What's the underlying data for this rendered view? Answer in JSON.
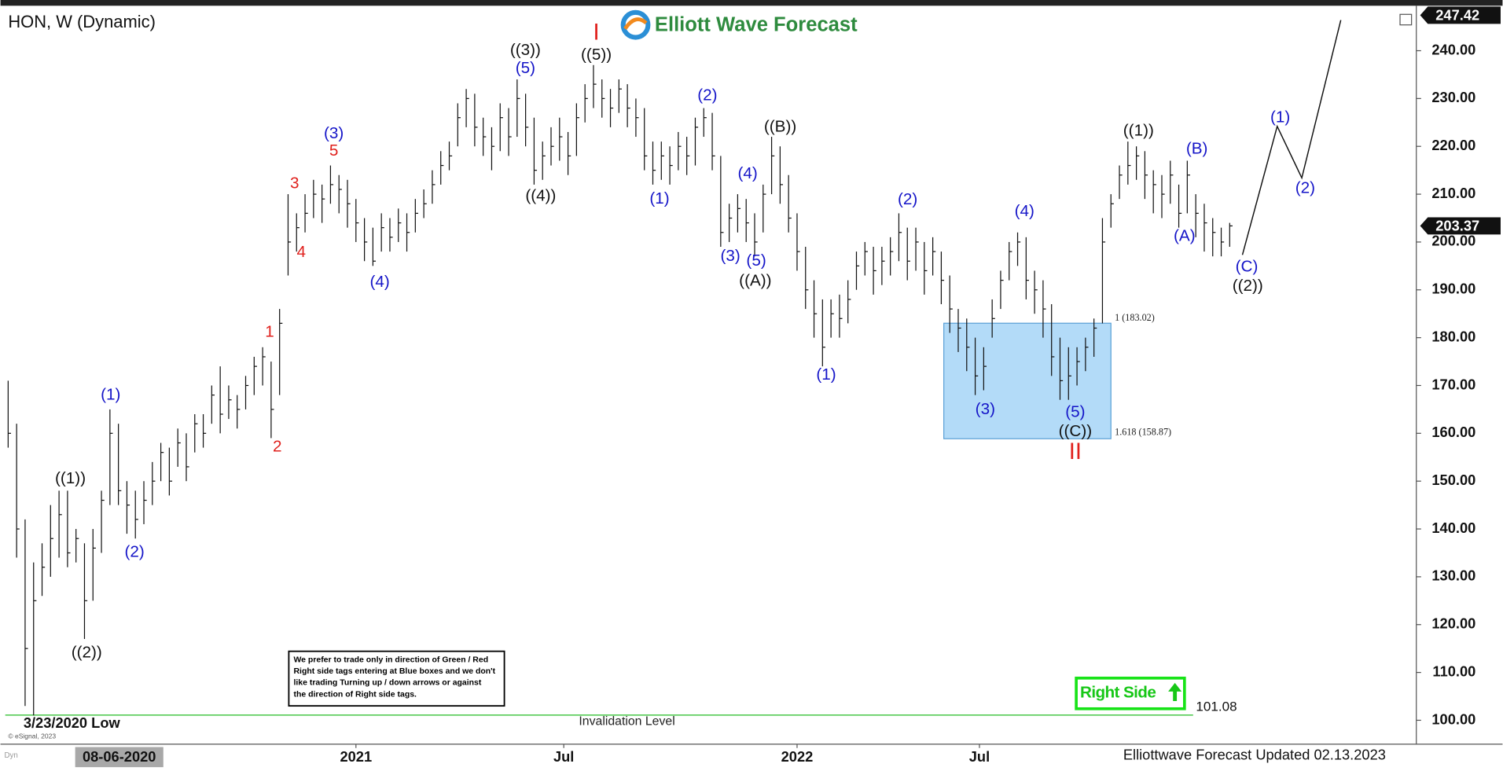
{
  "chart_data": {
    "type": "ohlc",
    "title": "HON, W (Dynamic)",
    "logo": "Elliott Wave Forecast",
    "footer": "Elliottwave Forecast Updated 02.13.2023",
    "copyright": "© eSignal, 2023",
    "cursor_date": "08-06-2020",
    "low_label": "3/23/2020 Low",
    "color": "#111111",
    "xlim": [
      -0.34,
      166
    ],
    "ylim": [
      95,
      249
    ],
    "xticks": [
      {
        "value": 41,
        "label": "2021"
      },
      {
        "value": 65.5,
        "label": "Jul"
      },
      {
        "value": 93,
        "label": "2022"
      },
      {
        "value": 114.5,
        "label": "Jul"
      }
    ],
    "yticks": [
      {
        "value": 100,
        "label": "100.00"
      },
      {
        "value": 110,
        "label": "110.00"
      },
      {
        "value": 120,
        "label": "120.00"
      },
      {
        "value": 130,
        "label": "130.00"
      },
      {
        "value": 140,
        "label": "140.00"
      },
      {
        "value": 150,
        "label": "150.00"
      },
      {
        "value": 160,
        "label": "160.00"
      },
      {
        "value": 170,
        "label": "170.00"
      },
      {
        "value": 180,
        "label": "180.00"
      },
      {
        "value": 190,
        "label": "190.00"
      },
      {
        "value": 200,
        "label": "200.00"
      },
      {
        "value": 210,
        "label": "210.00"
      },
      {
        "value": 220,
        "label": "220.00"
      },
      {
        "value": 230,
        "label": "230.00"
      },
      {
        "value": 240,
        "label": "240.00"
      }
    ],
    "x": [
      0,
      1,
      2,
      3,
      4,
      5,
      6,
      7,
      8,
      9,
      10,
      11,
      12,
      13,
      14,
      15,
      16,
      17,
      18,
      19,
      20,
      21,
      22,
      23,
      24,
      25,
      26,
      27,
      28,
      29,
      30,
      31,
      32,
      33,
      34,
      35,
      36,
      37,
      38,
      39,
      40,
      41,
      42,
      43,
      44,
      45,
      46,
      47,
      48,
      49,
      50,
      51,
      52,
      53,
      54,
      55,
      56,
      57,
      58,
      59,
      60,
      61,
      62,
      63,
      64,
      65,
      66,
      67,
      68,
      69,
      70,
      71,
      72,
      73,
      74,
      75,
      76,
      77,
      78,
      79,
      80,
      81,
      82,
      83,
      84,
      85,
      86,
      87,
      88,
      89,
      90,
      91,
      92,
      93,
      94,
      95,
      96,
      97,
      98,
      99,
      100,
      101,
      102,
      103,
      104,
      105,
      106,
      107,
      108,
      109,
      110,
      111,
      112,
      113,
      114,
      115,
      116,
      117,
      118,
      119,
      120,
      121,
      122,
      123,
      124,
      125,
      126,
      127,
      128,
      129,
      130,
      131,
      132,
      133,
      134,
      135,
      136,
      137,
      138,
      139,
      140,
      141,
      142,
      143,
      144
    ],
    "high": [
      171,
      162,
      142,
      133,
      137,
      145,
      148,
      148,
      140,
      137,
      140,
      148,
      165,
      162,
      150,
      148,
      150,
      154,
      158,
      157,
      161,
      160,
      164,
      164,
      170,
      174,
      170,
      168,
      172,
      176,
      178,
      175,
      186,
      210,
      206,
      210,
      213,
      212,
      216,
      214,
      213,
      209,
      205,
      203,
      206,
      205,
      207,
      206,
      209,
      211,
      215,
      219,
      221,
      229,
      232,
      231,
      226,
      224,
      229,
      228,
      234,
      231,
      226,
      221,
      224,
      226,
      223,
      229,
      233,
      237,
      234,
      232,
      234,
      233,
      230,
      228,
      221,
      221,
      220,
      223,
      222,
      226,
      228,
      227,
      218,
      208,
      210,
      209,
      206,
      212,
      222,
      220,
      214,
      206,
      199,
      192,
      188,
      188,
      189,
      192,
      198,
      200,
      199,
      199,
      201,
      206,
      203,
      203,
      200,
      201,
      198,
      193,
      186,
      184,
      180,
      178,
      188,
      194,
      200,
      202,
      201,
      194,
      192,
      187,
      180,
      178,
      178,
      180,
      184,
      205,
      210,
      216,
      221,
      220,
      219,
      215,
      214,
      217,
      212,
      217,
      210,
      208,
      205,
      203,
      204
    ],
    "low": [
      157,
      134,
      103,
      101,
      126,
      130,
      134,
      132,
      133,
      117,
      125,
      135,
      145,
      145,
      139,
      138,
      141,
      145,
      150,
      147,
      153,
      150,
      156,
      157,
      162,
      160,
      163,
      161,
      165,
      168,
      170,
      159,
      168,
      193,
      198,
      202,
      205,
      204,
      208,
      206,
      203,
      200,
      196,
      195,
      198,
      198,
      200,
      198,
      202,
      205,
      208,
      212,
      215,
      220,
      224,
      220,
      218,
      215,
      219,
      218,
      222,
      220,
      212,
      213,
      216,
      217,
      214,
      218,
      225,
      228,
      226,
      224,
      227,
      224,
      222,
      215,
      212,
      213,
      212,
      215,
      214,
      216,
      222,
      215,
      199,
      200,
      202,
      200,
      197,
      202,
      210,
      208,
      202,
      194,
      186,
      180,
      174,
      180,
      180,
      183,
      190,
      193,
      189,
      191,
      193,
      196,
      192,
      194,
      189,
      193,
      187,
      181,
      177,
      173,
      168,
      169,
      180,
      186,
      192,
      195,
      188,
      185,
      180,
      172,
      167,
      167,
      170,
      173,
      176,
      183,
      203,
      209,
      212,
      213,
      209,
      206,
      205,
      208,
      203,
      206,
      201,
      198,
      197,
      197,
      199
    ],
    "close": [
      160,
      140,
      115,
      125,
      132,
      138,
      143,
      135,
      138,
      125,
      136,
      146,
      160,
      148,
      145,
      142,
      146,
      150,
      156,
      150,
      158,
      153,
      162,
      160,
      168,
      164,
      167,
      165,
      170,
      174,
      176,
      165,
      183,
      200,
      203,
      206,
      210,
      209,
      212,
      211,
      208,
      204,
      200,
      196,
      203,
      201,
      204,
      202,
      206,
      208,
      212,
      216,
      218,
      226,
      230,
      224,
      222,
      220,
      226,
      222,
      230,
      224,
      215,
      218,
      220,
      222,
      218,
      226,
      230,
      233,
      230,
      228,
      232,
      228,
      226,
      218,
      215,
      218,
      216,
      220,
      218,
      224,
      226,
      218,
      202,
      205,
      207,
      204,
      200,
      210,
      218,
      212,
      205,
      198,
      190,
      185,
      178,
      185,
      184,
      188,
      195,
      198,
      194,
      196,
      198,
      202,
      196,
      200,
      194,
      198,
      192,
      186,
      182,
      178,
      172,
      174,
      184,
      192,
      198,
      200,
      192,
      190,
      186,
      176,
      171,
      172,
      175,
      178,
      182,
      200,
      208,
      214,
      216,
      218,
      214,
      212,
      210,
      214,
      206,
      214,
      206,
      204,
      202,
      200,
      203.37
    ],
    "last_price": 203.37,
    "top_price": 247.42,
    "projection": {
      "x": [
        145.5,
        149.6,
        152.5,
        157.1
      ],
      "y": [
        197.3,
        224.2,
        213.4,
        246.4
      ],
      "color": "#111111"
    },
    "fib_box": {
      "x": [
        110.3,
        130.0
      ],
      "top": 183.02,
      "bottom": 158.87,
      "top_label": "1 (183.02)",
      "bottom_label": "1.618 (158.87)",
      "color": "#b3dbf8"
    },
    "invalidation": {
      "value": 101.08,
      "label": "101.08",
      "text": "Invalidation Level",
      "color": "#22bb22"
    },
    "right_side": "Right Side",
    "notice": [
      "We prefer to trade only in direction of Green / Red",
      "Right side tags entering at Blue boxes and we don't",
      "like trading Turning up / down arrows or against",
      "the direction of Right side tags."
    ],
    "annotations": [
      {
        "text": "((1))",
        "color": "#111111"
      },
      {
        "text": "((2))",
        "color": "#111111"
      },
      {
        "text": "(1)",
        "color": "#1414c8"
      },
      {
        "text": "(2)",
        "color": "#1414c8"
      },
      {
        "text": "1",
        "color": "#e0201c"
      },
      {
        "text": "2",
        "color": "#e0201c"
      },
      {
        "text": "3",
        "color": "#e0201c"
      },
      {
        "text": "4",
        "color": "#e0201c"
      },
      {
        "text": "5",
        "color": "#e0201c"
      },
      {
        "text": "(3)",
        "color": "#1414c8"
      },
      {
        "text": "(4)",
        "color": "#1414c8"
      },
      {
        "text": "((3))",
        "color": "#111111"
      },
      {
        "text": "(5)",
        "color": "#1414c8"
      },
      {
        "text": "((4))",
        "color": "#111111"
      },
      {
        "text": "I",
        "color": "#e0201c"
      },
      {
        "text": "((5))",
        "color": "#111111"
      },
      {
        "text": "(1)",
        "color": "#1414c8"
      },
      {
        "text": "(2)",
        "color": "#1414c8"
      },
      {
        "text": "(4)",
        "color": "#1414c8"
      },
      {
        "text": "((B))",
        "color": "#111111"
      },
      {
        "text": "(3)",
        "color": "#1414c8"
      },
      {
        "text": "(5)",
        "color": "#1414c8"
      },
      {
        "text": "((A))",
        "color": "#111111"
      },
      {
        "text": "(1)",
        "color": "#1414c8"
      },
      {
        "text": "(2)",
        "color": "#1414c8"
      },
      {
        "text": "(4)",
        "color": "#1414c8"
      },
      {
        "text": "(3)",
        "color": "#1414c8"
      },
      {
        "text": "(5)",
        "color": "#1414c8"
      },
      {
        "text": "((C))",
        "color": "#111111"
      },
      {
        "text": "II",
        "color": "#e0201c"
      },
      {
        "text": "((1))",
        "color": "#111111"
      },
      {
        "text": "(B)",
        "color": "#1414c8"
      },
      {
        "text": "(A)",
        "color": "#1414c8"
      },
      {
        "text": "(C)",
        "color": "#1414c8"
      },
      {
        "text": "((2))",
        "color": "#111111"
      },
      {
        "text": "(1)",
        "color": "#1414c8"
      },
      {
        "text": "(2)",
        "color": "#1414c8"
      }
    ]
  }
}
